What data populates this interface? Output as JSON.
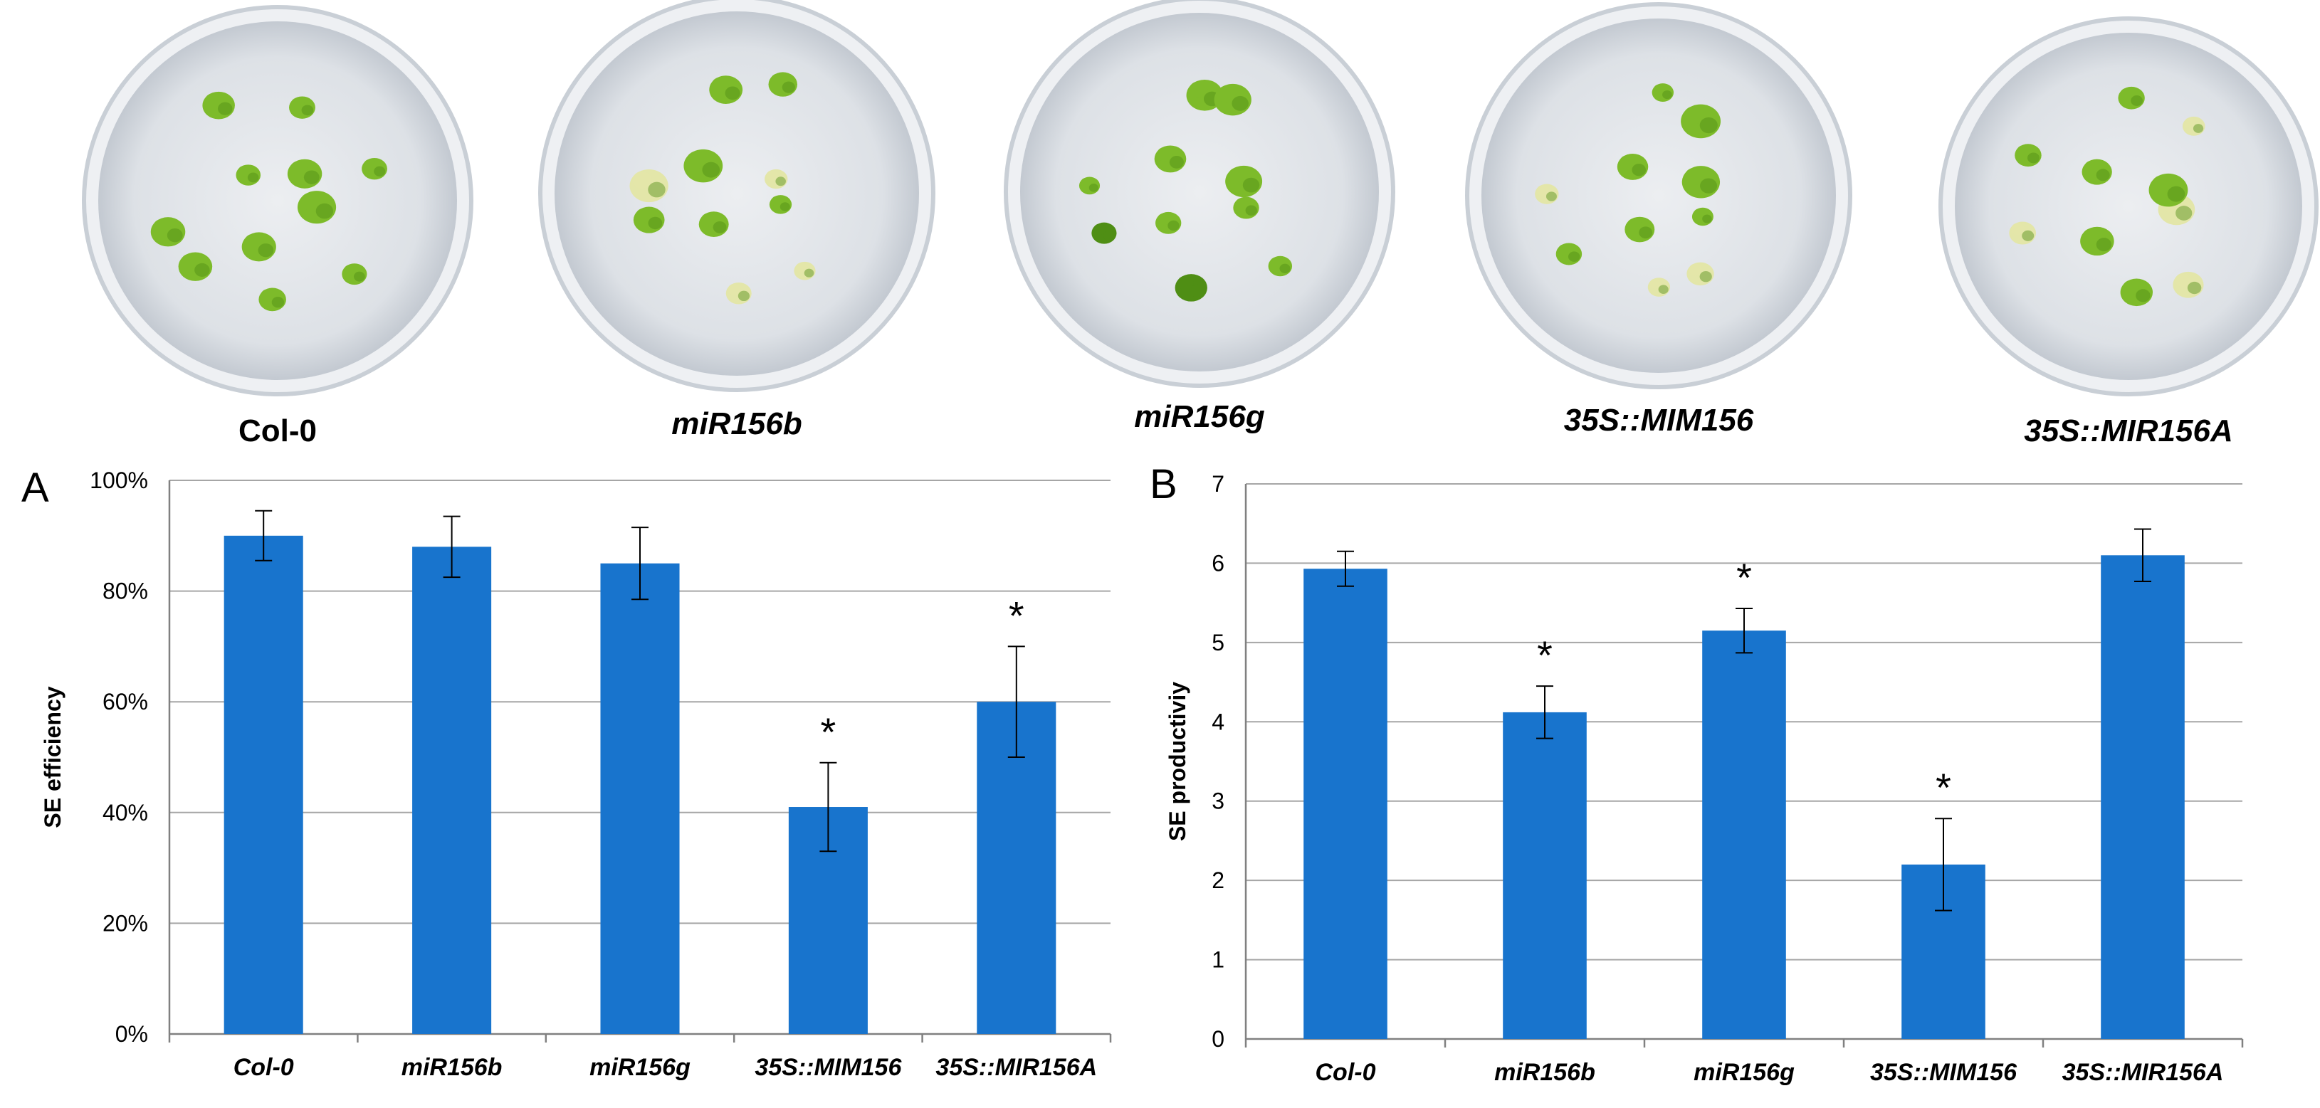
{
  "plates": [
    {
      "label": "Col-0"
    },
    {
      "label": "miR156b"
    },
    {
      "label": "miR156g"
    },
    {
      "label": "35S::MIM156"
    },
    {
      "label": "35S::MIR156A"
    }
  ],
  "colors": {
    "bar": "#1874cd",
    "grid": "#a6a6a6",
    "axis": "#808080",
    "callus": "#7dbb2a",
    "callus_dark": "#4f8e14",
    "callus_pale": "#e3e6a9",
    "plate_rim": "#c9cfd6",
    "plate_fill": "#dfe3e8"
  },
  "chart_data": [
    {
      "panel": "A",
      "type": "bar",
      "title": "",
      "xlabel": "",
      "ylabel": "SE efficiency",
      "categories": [
        "Col-0",
        "miR156b",
        "miR156g",
        "35S::MIM156",
        "35S::MIR156A"
      ],
      "values": [
        90,
        88,
        85,
        41,
        60
      ],
      "errors": [
        4.5,
        5.5,
        6.5,
        8,
        10
      ],
      "significant": [
        false,
        false,
        false,
        true,
        true
      ],
      "significance_marker": "*",
      "ylim": [
        0,
        100
      ],
      "yticks": [
        "0%",
        "20%",
        "40%",
        "60%",
        "80%",
        "100%"
      ],
      "ytick_values": [
        0,
        20,
        40,
        60,
        80,
        100
      ],
      "grid": true,
      "legend": "none"
    },
    {
      "panel": "B",
      "type": "bar",
      "title": "",
      "xlabel": "",
      "ylabel": "SE productiviy",
      "categories": [
        "Col-0",
        "miR156b",
        "miR156g",
        "35S::MIM156",
        "35S::MIR156A"
      ],
      "values": [
        5.93,
        4.12,
        5.15,
        2.2,
        6.1
      ],
      "errors": [
        0.22,
        0.33,
        0.28,
        0.58,
        0.33
      ],
      "significant": [
        false,
        true,
        true,
        true,
        false
      ],
      "significance_marker": "*",
      "ylim": [
        0,
        7
      ],
      "yticks": [
        "0",
        "1",
        "2",
        "3",
        "4",
        "5",
        "6",
        "7"
      ],
      "ytick_values": [
        0,
        1,
        2,
        3,
        4,
        5,
        6,
        7
      ],
      "grid": true,
      "legend": "none"
    }
  ]
}
